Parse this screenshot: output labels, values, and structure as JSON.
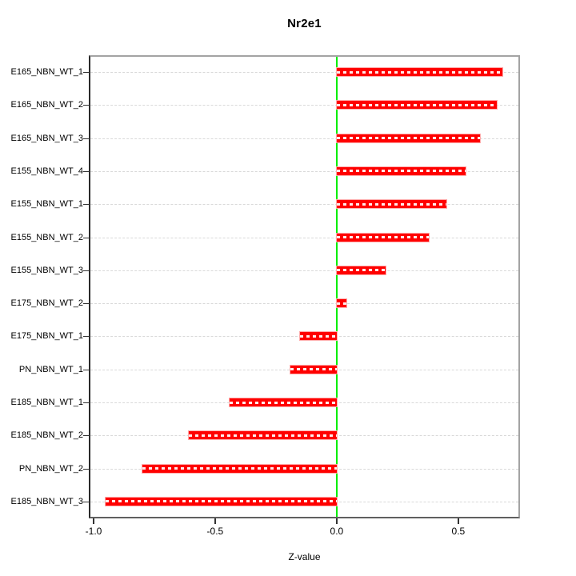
{
  "chart_data": {
    "type": "bar",
    "orientation": "horizontal",
    "title": "Nr2e1",
    "xlabel": "Z-value",
    "categories": [
      "E165_NBN_WT_1",
      "E165_NBN_WT_2",
      "E165_NBN_WT_3",
      "E155_NBN_WT_4",
      "E155_NBN_WT_1",
      "E155_NBN_WT_2",
      "E155_NBN_WT_3",
      "E175_NBN_WT_2",
      "E175_NBN_WT_1",
      "PN_NBN_WT_1",
      "E185_NBN_WT_1",
      "E185_NBN_WT_2",
      "PN_NBN_WT_2",
      "E185_NBN_WT_3"
    ],
    "values": [
      0.68,
      0.66,
      0.59,
      0.53,
      0.45,
      0.38,
      0.2,
      0.04,
      -0.15,
      -0.19,
      -0.44,
      -0.61,
      -0.8,
      -0.95
    ],
    "xticks": [
      -1.0,
      -0.5,
      0.0,
      0.5
    ],
    "xtick_labels": [
      "-1.0",
      "-0.5",
      "0.0",
      "0.5"
    ],
    "xlim": [
      -1.013,
      0.747
    ],
    "grid": "horizontal dashed line per category",
    "zero_line_x": 0.0,
    "legend": "none",
    "colors": {
      "bar": "#ff0000",
      "bar_dash_overlay": "#ffffff",
      "bar_halo": "#ffaaaa",
      "zero_line": "#00ee00",
      "gridline": "#d9d9d9",
      "box_border": "#a3a3a3",
      "axis_line": "#2a2a2a",
      "tick": "#333333",
      "text": "#000000",
      "background": "#ffffff"
    }
  }
}
